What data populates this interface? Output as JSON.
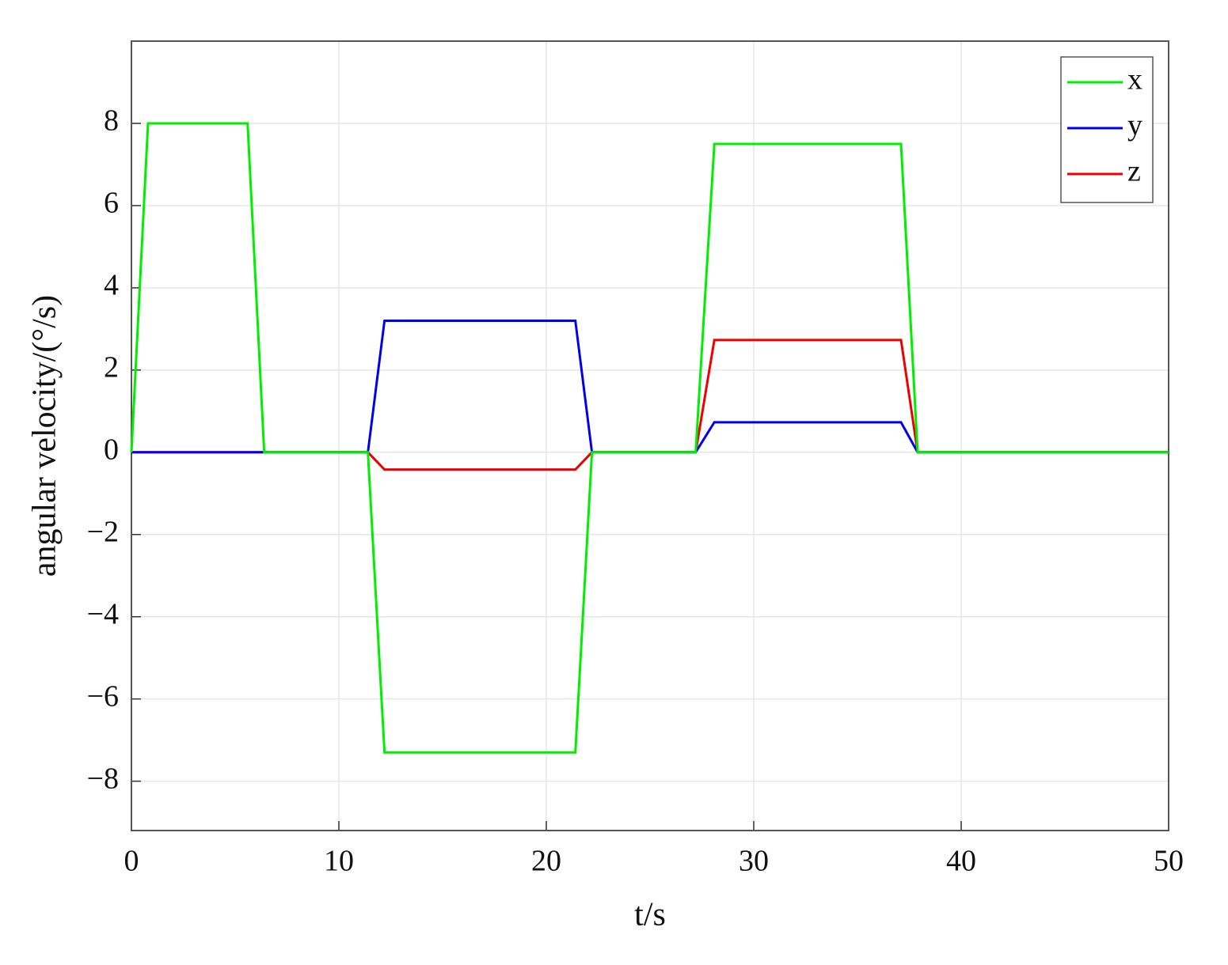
{
  "chart_data": {
    "type": "line",
    "x_label": "t/s",
    "y_label": "angular velocity/(°/s)",
    "x": [
      0,
      0.8,
      5.6,
      6.4,
      11.4,
      12.2,
      21.4,
      22.2,
      27.2,
      28.1,
      37.1,
      37.9,
      50
    ],
    "series": [
      {
        "name": "x",
        "color": "#00ee00",
        "values": [
          0,
          8,
          8,
          0,
          0,
          -7.3,
          -7.3,
          0,
          0,
          7.5,
          7.5,
          0,
          0
        ]
      },
      {
        "name": "y",
        "color": "#0000ee",
        "values": [
          0,
          0,
          0,
          0,
          0,
          3.2,
          3.2,
          0,
          0,
          0.73,
          0.73,
          0,
          0
        ]
      },
      {
        "name": "z",
        "color": "#ee0000",
        "values": [
          0,
          0,
          0,
          0,
          0,
          -0.42,
          -0.42,
          0,
          0,
          2.73,
          2.73,
          0,
          0
        ]
      }
    ],
    "xlim": [
      0,
      50
    ],
    "xticks": [
      0,
      10,
      20,
      30,
      40,
      50
    ],
    "ylim": [
      -9.2,
      10
    ],
    "yticks": [
      {
        "value": -8,
        "label": "−8"
      },
      {
        "value": -6,
        "label": "−6"
      },
      {
        "value": -4,
        "label": "−4"
      },
      {
        "value": -2,
        "label": "−2"
      },
      0,
      2,
      4,
      6,
      8
    ],
    "grid": true,
    "legend": "top-right"
  }
}
